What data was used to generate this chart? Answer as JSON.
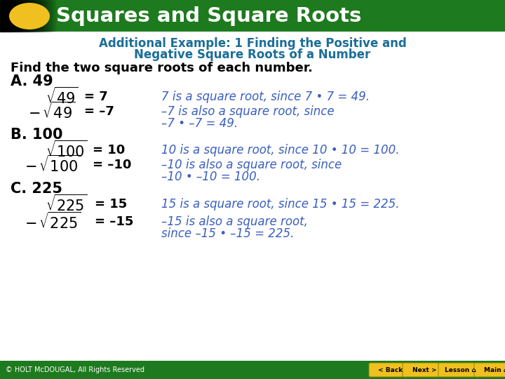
{
  "title": "Squares and Square Roots",
  "header_bg_color": "#1e7a1e",
  "header_text_color": "#ffffff",
  "ellipse_color": "#f0c020",
  "subtitle_color": "#1a6e9a",
  "subtitle_line1": "Additional Example: 1 Finding the Positive and",
  "subtitle_line2": "Negative Square Roots of a Number",
  "intro_text": "Find the two square roots of each number.",
  "body_text_color": "#000000",
  "italic_color": "#3a5fbf",
  "bg_color": "#ffffff",
  "footer_bg": "#1e7a1e",
  "footer_text": "© HOLT McDOUGAL, All Rights Reserved",
  "footer_text_color": "#ffffff"
}
